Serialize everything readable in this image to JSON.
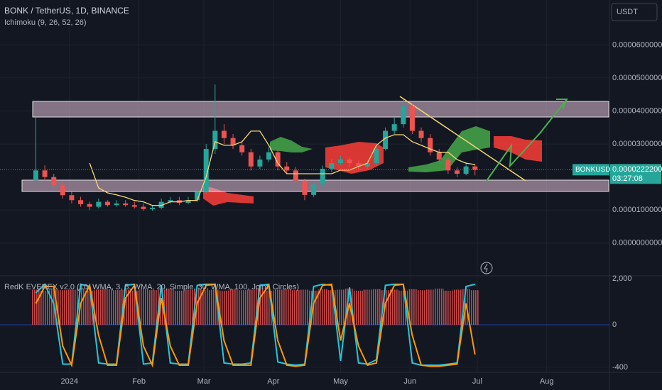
{
  "chart_data": {
    "type": "candlestick",
    "title": "BONK / TetherUS, 1D, BINANCE",
    "indicator": "Ichimoku (9, 26, 52, 26)",
    "currency": "USDT",
    "symbol": "BONKUSDT",
    "countdown": "03:27:08",
    "last_price": {
      "value": 2.222e-05,
      "label": "0.00002222000"
    },
    "up_color": "#26a69a",
    "down_color": "#ef5350",
    "x": [
      -15,
      -11,
      -7,
      -3,
      1,
      5,
      9,
      13,
      17,
      21,
      25,
      29,
      33,
      37,
      41,
      45,
      49,
      53,
      57,
      61,
      65,
      69,
      73,
      77,
      81,
      85,
      89,
      93,
      97,
      101,
      105,
      109,
      113,
      117,
      121,
      125,
      129,
      133,
      137,
      141,
      145,
      149,
      153,
      157,
      161,
      165,
      169,
      173,
      177,
      181
    ],
    "open": [
      1.9e-05,
      2.2e-05,
      2e-05,
      1.75e-05,
      1.45e-05,
      1.3e-05,
      1.18e-05,
      1.1e-05,
      1.25e-05,
      1.15e-05,
      1.2e-05,
      1.15e-05,
      1.1e-05,
      1.03e-05,
      1.07e-05,
      1.25e-05,
      1.3e-05,
      1.22e-05,
      1.3e-05,
      1.56e-05,
      2.85e-05,
      3.4e-05,
      3.18e-05,
      2.96e-05,
      2.75e-05,
      2.32e-05,
      2.53e-05,
      2.75e-05,
      2.32e-05,
      2.2e-05,
      1.89e-05,
      1.46e-05,
      1.78e-05,
      2.25e-05,
      2.42e-05,
      2.53e-05,
      2.42e-05,
      2.32e-05,
      2.42e-05,
      2.85e-05,
      3.4e-05,
      3.6e-05,
      4.14e-05,
      3.4e-05,
      3.18e-05,
      2.75e-05,
      2.53e-05,
      2.2e-05,
      2.1e-05,
      2.32e-05
    ],
    "high": [
      3.8e-05,
      2.35e-05,
      2.1e-05,
      1.85e-05,
      1.55e-05,
      1.4e-05,
      1.25e-05,
      1.35e-05,
      1.3e-05,
      1.3e-05,
      1.3e-05,
      1.25e-05,
      1.2e-05,
      1.15e-05,
      1.35e-05,
      1.4e-05,
      1.4e-05,
      1.4e-05,
      1.65e-05,
      3e-05,
      4.8e-05,
      3.6e-05,
      3.3e-05,
      3.1e-05,
      2.85e-05,
      2.65e-05,
      2.9e-05,
      2.85e-05,
      2.45e-05,
      2.3e-05,
      1.95e-05,
      1.85e-05,
      2.35e-05,
      2.55e-05,
      2.65e-05,
      2.6e-05,
      2.5e-05,
      2.5e-05,
      2.95e-05,
      3.5e-05,
      3.8e-05,
      4.35e-05,
      4.2e-05,
      3.5e-05,
      3.3e-05,
      2.85e-05,
      2.6e-05,
      2.3e-05,
      2.45e-05,
      2.4e-05
    ],
    "low": [
      1.8e-05,
      1.9e-05,
      1.65e-05,
      1.35e-05,
      1.2e-05,
      1.1e-05,
      1e-05,
      1.05e-05,
      1.1e-05,
      1.1e-05,
      1.1e-05,
      1.05e-05,
      9.8e-06,
      9.8e-06,
      1.02e-05,
      1.2e-05,
      1.15e-05,
      1.18e-05,
      1.25e-05,
      1.5e-05,
      2.7e-05,
      3e-05,
      2.85e-05,
      2.65e-05,
      2.2e-05,
      2.25e-05,
      2.45e-05,
      2.2e-05,
      2.1e-05,
      1.8e-05,
      1.3e-05,
      1.4e-05,
      1.7e-05,
      2.15e-05,
      2.35e-05,
      2.3e-05,
      2.2e-05,
      2.25e-05,
      2.35e-05,
      2.8e-05,
      3.3e-05,
      3.5e-05,
      3.3e-05,
      3.05e-05,
      2.65e-05,
      2.45e-05,
      2.1e-05,
      2e-05,
      2.05e-05,
      2.05e-05
    ],
    "close": [
      2.2e-05,
      2e-05,
      1.75e-05,
      1.45e-05,
      1.3e-05,
      1.18e-05,
      1.1e-05,
      1.25e-05,
      1.15e-05,
      1.2e-05,
      1.15e-05,
      1.1e-05,
      1.03e-05,
      1.07e-05,
      1.25e-05,
      1.3e-05,
      1.22e-05,
      1.3e-05,
      1.56e-05,
      2.85e-05,
      3.4e-05,
      3.18e-05,
      2.96e-05,
      2.75e-05,
      2.32e-05,
      2.53e-05,
      2.75e-05,
      2.32e-05,
      2.2e-05,
      1.89e-05,
      1.46e-05,
      1.78e-05,
      2.25e-05,
      2.42e-05,
      2.53e-05,
      2.42e-05,
      2.32e-05,
      2.42e-05,
      2.85e-05,
      3.4e-05,
      3.6e-05,
      4.14e-05,
      3.4e-05,
      3.18e-05,
      2.75e-05,
      2.53e-05,
      2.2e-05,
      2.1e-05,
      2.32e-05,
      2.222e-05
    ],
    "overlay": {
      "color": "#f7d774",
      "values": [
        null,
        null,
        null,
        null,
        null,
        null,
        2.42e-05,
        1.67e-05,
        1.52e-05,
        1.46e-05,
        1.39e-05,
        1.29e-05,
        1.25e-05,
        1.14e-05,
        1.14e-05,
        1.25e-05,
        1.25e-05,
        1.29e-05,
        1.29e-05,
        2e-05,
        3.07e-05,
        2.96e-05,
        2.96e-05,
        3.07e-05,
        3.39e-05,
        3.39e-05,
        2.96e-05,
        2.42e-05,
        2.1e-05,
        2.1e-05,
        2.1e-05,
        2.1e-05,
        2.1e-05,
        2.1e-05,
        2.21e-05,
        2.21e-05,
        2.32e-05,
        2.42e-05,
        2.96e-05,
        3.18e-05,
        3.28e-05,
        3.28e-05,
        3.07e-05,
        2.96e-05,
        2.85e-05,
        2.75e-05,
        2.75e-05,
        2.53e-05,
        2.42e-05,
        2.38e-05
      ]
    },
    "xlim": [
      -31,
      241
    ],
    "xticks": [
      {
        "value": 0,
        "label": "2024"
      },
      {
        "value": 31,
        "label": "Feb"
      },
      {
        "value": 60,
        "label": "Mar"
      },
      {
        "value": 91,
        "label": "Apr"
      },
      {
        "value": 121,
        "label": "May"
      },
      {
        "value": 152,
        "label": "Jun"
      },
      {
        "value": 182,
        "label": "Jul"
      },
      {
        "value": 213,
        "label": "Aug"
      }
    ],
    "ylim": [
      -9.7e-06,
      7.36e-05
    ],
    "yticks": [
      {
        "value": 0,
        "label": "0.00000000000"
      },
      {
        "value": 1e-05,
        "label": "0.00001000000"
      },
      {
        "value": 3e-05,
        "label": "0.00003000000"
      },
      {
        "value": 4e-05,
        "label": "0.00004000000"
      },
      {
        "value": 5e-05,
        "label": "0.00005000000"
      },
      {
        "value": 6e-05,
        "label": "0.00006000000"
      }
    ],
    "oscillator": {
      "title": "RedK EVEREX v2.0 (10, WMA, 3, 5, WMA, 20, Simple, 30, WMA, 100, Joint, Circles)",
      "top_label": "2,000",
      "ylim": [
        -447,
        453
      ],
      "yticks": [
        0,
        -400
      ],
      "histogram": {
        "color": "#ef5350",
        "values": [
          330,
          320,
          335,
          325,
          330,
          340,
          320,
          330,
          335,
          325,
          330,
          320,
          335,
          325,
          330,
          340,
          320,
          330,
          335,
          325,
          330,
          320,
          335,
          325,
          330,
          340,
          320,
          330,
          335,
          325,
          330,
          320,
          335,
          325,
          330,
          340,
          320,
          330,
          335,
          325,
          330,
          320,
          335,
          325,
          330,
          340,
          320,
          330,
          335,
          325
        ]
      },
      "series": [
        {
          "color": "#26c6da",
          "values": [
            300,
            380,
            200,
            -370,
            -370,
            380,
            360,
            -360,
            -370,
            -370,
            370,
            380,
            -370,
            -360,
            370,
            -360,
            -370,
            -370,
            370,
            380,
            380,
            -360,
            -370,
            -370,
            -360,
            370,
            380,
            -350,
            -370,
            -380,
            -370,
            360,
            380,
            370,
            -340,
            350,
            -360,
            -370,
            -330,
            370,
            380,
            380,
            -360,
            -380,
            -380,
            -380,
            -370,
            -360,
            360,
            380
          ]
        },
        {
          "color": "#ff9800",
          "values": [
            200,
            360,
            360,
            -200,
            -380,
            200,
            370,
            -100,
            -380,
            -380,
            250,
            370,
            -200,
            -380,
            250,
            -200,
            -380,
            -380,
            200,
            370,
            380,
            -150,
            -380,
            -380,
            -380,
            250,
            370,
            -150,
            -380,
            -390,
            -380,
            200,
            370,
            380,
            -150,
            200,
            -200,
            -380,
            -360,
            200,
            370,
            380,
            -100,
            -380,
            -390,
            -390,
            -380,
            -370,
            200,
            -280
          ]
        }
      ]
    }
  }
}
